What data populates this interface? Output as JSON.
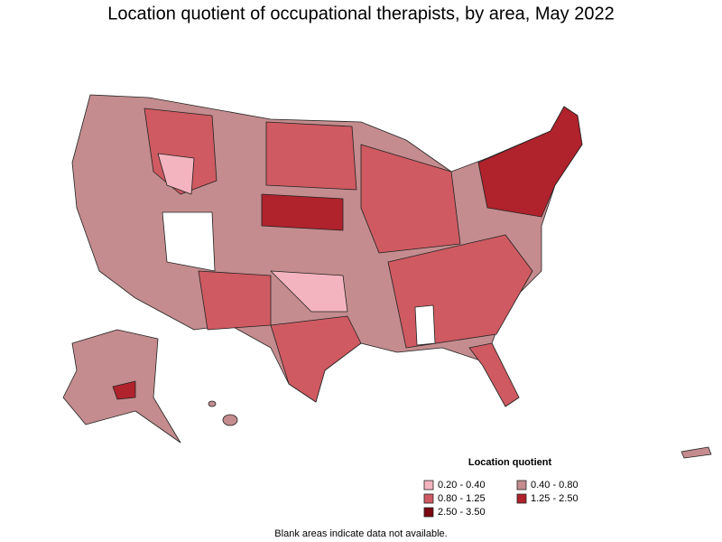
{
  "title": "Location quotient of occupational therapists, by area, May 2022",
  "legend": {
    "title": "Location quotient",
    "items": [
      {
        "label": "0.20 - 0.40",
        "color": "#f4b4bf"
      },
      {
        "label": "0.40 - 0.80",
        "color": "#c48c8e"
      },
      {
        "label": "0.80 - 1.25",
        "color": "#cf5a61"
      },
      {
        "label": "1.25 - 2.50",
        "color": "#b0222c"
      },
      {
        "label": "2.50 - 3.50",
        "color": "#7a0711"
      }
    ]
  },
  "note": "Blank areas indicate data not available."
}
